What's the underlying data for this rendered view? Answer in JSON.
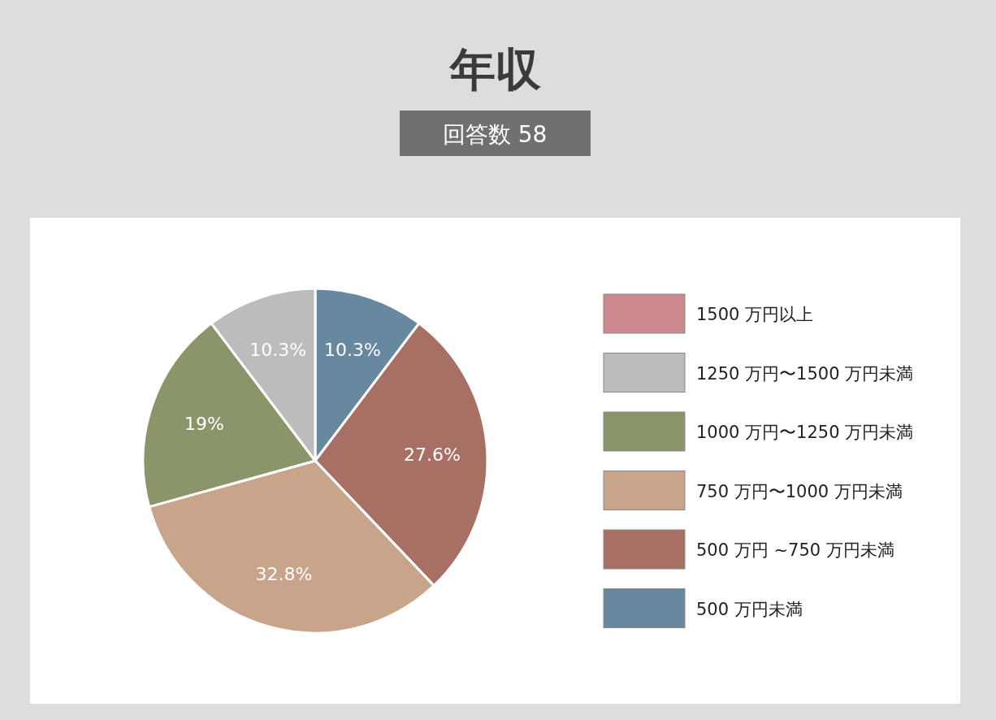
{
  "chart_data": {
    "type": "pie",
    "title": "年収",
    "subtitle": "回答数 58",
    "categories": [
      "1500 万円以上",
      "1250 万円〜1500 万円未満",
      "1000 万円〜1250 万円未満",
      "750 万円〜1000 万円未満",
      "500 万円 ~750 万円未満",
      "500 万円未満"
    ],
    "values": [
      0,
      10.3,
      19,
      32.8,
      27.6,
      10.3
    ],
    "value_labels": [
      null,
      "10.3%",
      "19%",
      "32.8%",
      "27.6%",
      "10.3%"
    ],
    "colors": [
      "#cc8a90",
      "#bbbcbb",
      "#8a966a",
      "#c8a58a",
      "#a87064",
      "#6888a0"
    ],
    "legend": "right"
  }
}
